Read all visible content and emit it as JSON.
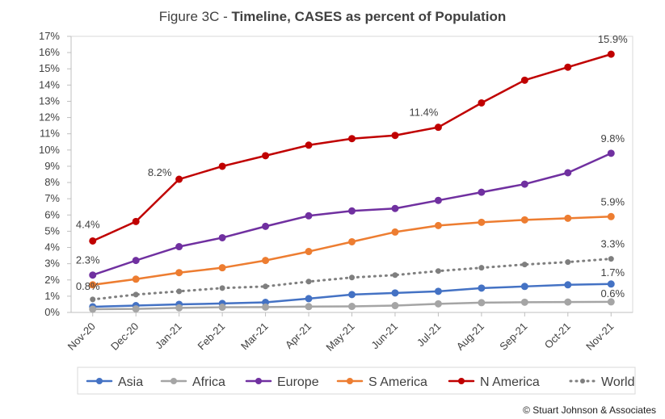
{
  "chart_data": {
    "type": "line",
    "title_prefix": "Figure 3C - ",
    "title_main": "Timeline, CASES as percent of Population",
    "xlabel": "",
    "ylabel": "",
    "categories": [
      "Nov-20",
      "Dec-20",
      "Jan-21",
      "Feb-21",
      "Mar-21",
      "Apr-21",
      "May-21",
      "Jun-21",
      "Jul-21",
      "Aug-21",
      "Sep-21",
      "Oct-21",
      "Nov-21"
    ],
    "ylim": [
      0,
      17
    ],
    "y_ticks": [
      0,
      1,
      2,
      3,
      4,
      5,
      6,
      7,
      8,
      9,
      10,
      11,
      12,
      13,
      14,
      15,
      16,
      17
    ],
    "y_tick_format": "percent",
    "grid": {
      "horizontal": false,
      "vertical": false
    },
    "legend": "bottom",
    "series": [
      {
        "name": "Asia",
        "color": "#4472C4",
        "dash": false,
        "values": [
          0.35,
          0.42,
          0.5,
          0.55,
          0.62,
          0.85,
          1.1,
          1.2,
          1.3,
          1.5,
          1.6,
          1.7,
          1.75
        ],
        "labels": [
          {
            "index": 12,
            "text": "1.7%"
          }
        ]
      },
      {
        "name": "Africa",
        "color": "#A5A5A5",
        "dash": false,
        "values": [
          0.2,
          0.22,
          0.28,
          0.32,
          0.33,
          0.36,
          0.37,
          0.42,
          0.53,
          0.6,
          0.63,
          0.64,
          0.65
        ],
        "labels": [
          {
            "index": 12,
            "text": "0.6%"
          }
        ]
      },
      {
        "name": "Europe",
        "color": "#7030A0",
        "dash": false,
        "values": [
          2.3,
          3.2,
          4.05,
          4.6,
          5.3,
          5.95,
          6.25,
          6.4,
          6.9,
          7.4,
          7.9,
          8.6,
          9.8
        ],
        "labels": [
          {
            "index": 0,
            "text": "2.3%"
          },
          {
            "index": 12,
            "text": "9.8%"
          }
        ]
      },
      {
        "name": "S America",
        "color": "#ED7D31",
        "dash": false,
        "values": [
          1.7,
          2.05,
          2.45,
          2.75,
          3.2,
          3.75,
          4.35,
          4.95,
          5.35,
          5.55,
          5.7,
          5.8,
          5.9
        ],
        "labels": [
          {
            "index": 12,
            "text": "5.9%"
          }
        ]
      },
      {
        "name": "N America",
        "color": "#C00000",
        "dash": false,
        "values": [
          4.4,
          5.6,
          8.2,
          9.0,
          9.65,
          10.3,
          10.7,
          10.9,
          11.4,
          12.9,
          14.3,
          15.1,
          15.9
        ],
        "labels": [
          {
            "index": 0,
            "text": "4.4%"
          },
          {
            "index": 2,
            "text": "8.2%"
          },
          {
            "index": 8,
            "text": "11.4%"
          },
          {
            "index": 12,
            "text": "15.9%"
          }
        ]
      },
      {
        "name": "World",
        "color": "#7F7F7F",
        "dash": true,
        "values": [
          0.8,
          1.1,
          1.3,
          1.5,
          1.6,
          1.9,
          2.15,
          2.3,
          2.55,
          2.75,
          2.95,
          3.1,
          3.3
        ],
        "labels": [
          {
            "index": 0,
            "text": "0.8%"
          },
          {
            "index": 12,
            "text": "3.3%"
          }
        ]
      }
    ]
  },
  "footer": {
    "credit": "© Stuart Johnson & Associates"
  }
}
